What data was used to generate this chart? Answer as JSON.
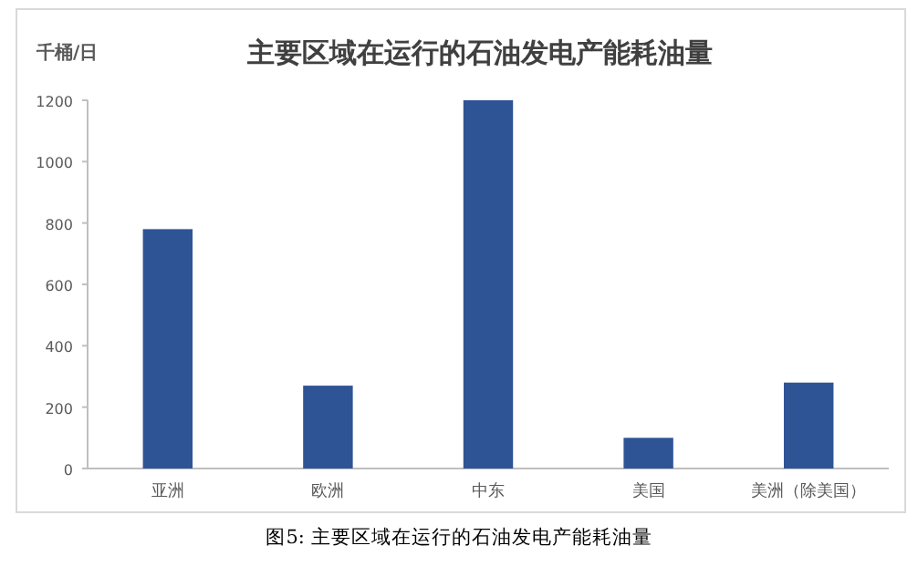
{
  "chart_data": {
    "type": "bar",
    "title": "主要区域在运行的石油发电产能耗油量",
    "ylabel": "千桶/日",
    "categories": [
      "亚洲",
      "欧洲",
      "中东",
      "美国",
      "美洲（除美国）"
    ],
    "values": [
      780,
      270,
      1200,
      100,
      280
    ],
    "color": "#2e5496",
    "ylim": [
      0,
      1200
    ],
    "yticks": [
      0,
      200,
      400,
      600,
      800,
      1000,
      1200
    ],
    "grid": false,
    "annotations": [
      "图5: 主要区域在运行的石油发电产能耗油量"
    ]
  }
}
